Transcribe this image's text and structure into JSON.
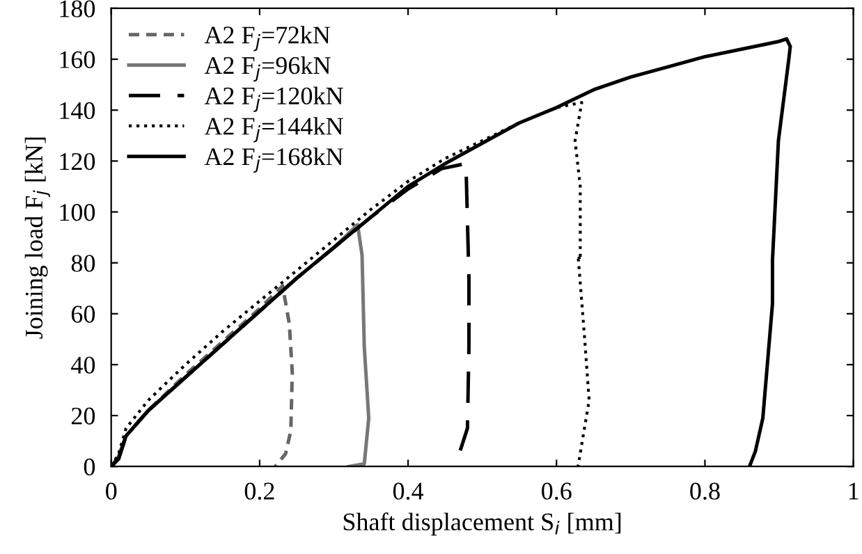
{
  "chart_data": {
    "type": "line",
    "xlabel": "Shaft displacement S$_{i}$ [mm]",
    "ylabel": "Joining load F$_{j}$ [kN]",
    "xlim": [
      0,
      1
    ],
    "xticks": [
      0,
      0.2,
      0.4,
      0.6,
      0.8,
      1
    ],
    "ylim": [
      0,
      180
    ],
    "yticks": [
      0,
      20,
      40,
      60,
      80,
      100,
      120,
      140,
      160,
      180
    ],
    "grid": false,
    "legend": "top left",
    "series": [
      {
        "name": "A2 F$_{j}$=72kN",
        "color": "#666666",
        "line_style": "dashed",
        "x": [
          0,
          0.01,
          0.02,
          0.05,
          0.1,
          0.15,
          0.2,
          0.231,
          0.24,
          0.244,
          0.242,
          0.235,
          0.221
        ],
        "values": [
          0,
          4,
          12,
          22,
          36,
          49,
          62,
          71,
          56,
          37,
          14,
          5,
          0
        ]
      },
      {
        "name": "A2 F$_{j}$=96kN",
        "color": "#777777",
        "line_style": "solid",
        "x": [
          0,
          0.01,
          0.02,
          0.05,
          0.1,
          0.15,
          0.2,
          0.25,
          0.3,
          0.332,
          0.338,
          0.341,
          0.347,
          0.341,
          0.32
        ],
        "values": [
          0,
          4,
          12,
          22,
          35,
          48,
          61,
          74,
          86,
          95,
          83,
          47,
          19,
          1,
          0
        ]
      },
      {
        "name": "A2 F$_{j}$=120kN",
        "color": "#000000",
        "line_style": "dashed",
        "x": [
          0,
          0.01,
          0.02,
          0.05,
          0.1,
          0.15,
          0.2,
          0.25,
          0.3,
          0.35,
          0.4,
          0.445,
          0.478,
          0.482,
          0.482,
          0.48,
          0.47,
          0.456
        ],
        "values": [
          0,
          3,
          12,
          22,
          35,
          48,
          61,
          74,
          86,
          98,
          109,
          117,
          119,
          74,
          47,
          15,
          6,
          1
        ]
      },
      {
        "name": "A2 F$_{j}$=144kN",
        "color": "#000000",
        "line_style": "dotted",
        "x": [
          0,
          0.01,
          0.02,
          0.05,
          0.1,
          0.15,
          0.2,
          0.25,
          0.3,
          0.35,
          0.4,
          0.45,
          0.5,
          0.55,
          0.6,
          0.634,
          0.625,
          0.632,
          0.632,
          0.629,
          0.638,
          0.644,
          0.629
        ],
        "values": [
          0,
          5,
          15,
          26,
          40,
          53,
          65,
          77,
          89,
          101,
          112,
          121,
          128,
          135,
          141,
          143,
          128,
          110,
          81,
          83,
          50,
          26,
          0
        ]
      },
      {
        "name": "A2 F$_{j}$=168kN",
        "color": "#000000",
        "line_style": "solid",
        "x": [
          0,
          0.01,
          0.02,
          0.05,
          0.1,
          0.15,
          0.2,
          0.25,
          0.3,
          0.35,
          0.4,
          0.45,
          0.5,
          0.55,
          0.6,
          0.65,
          0.7,
          0.75,
          0.8,
          0.85,
          0.9,
          0.91,
          0.915,
          0.913,
          0.899,
          0.891,
          0.891,
          0.878,
          0.868,
          0.86
        ],
        "values": [
          0,
          3,
          12,
          22,
          35,
          48,
          61,
          74,
          86,
          98,
          110,
          119,
          127,
          135,
          141,
          148,
          153,
          157,
          161,
          164,
          167,
          168,
          165,
          160,
          128,
          81,
          64,
          19,
          6,
          0
        ]
      }
    ]
  }
}
